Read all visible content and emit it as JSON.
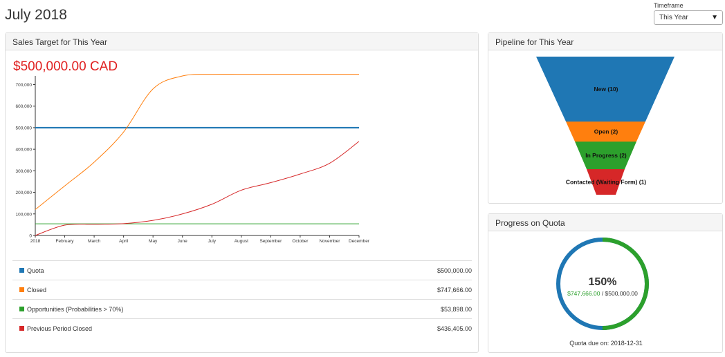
{
  "header": {
    "title": "July 2018",
    "timeframe_label": "Timeframe",
    "timeframe_value": "This Year"
  },
  "sales_panel": {
    "title": "Sales Target for This Year",
    "target_amount": "$500,000.00 CAD",
    "legend": [
      {
        "label": "Quota",
        "value": "$500,000.00",
        "color": "#1f77b4"
      },
      {
        "label": "Closed",
        "value": "$747,666.00",
        "color": "#ff7f0e"
      },
      {
        "label": "Opportunities (Probabilities > 70%)",
        "value": "$53,898.00",
        "color": "#2ca02c"
      },
      {
        "label": "Previous Period Closed",
        "value": "$436,405.00",
        "color": "#d62728"
      }
    ]
  },
  "chart_data": {
    "type": "line",
    "x": [
      "2018",
      "February",
      "March",
      "April",
      "May",
      "June",
      "July",
      "August",
      "September",
      "October",
      "November",
      "December"
    ],
    "y_ticks": [
      "0",
      "100,000",
      "200,000",
      "300,000",
      "400,000",
      "500,000",
      "600,000",
      "700,000"
    ],
    "ylim": [
      0,
      740000
    ],
    "series": [
      {
        "name": "Quota",
        "color": "#1f77b4",
        "values": [
          500000,
          500000,
          500000,
          500000,
          500000,
          500000,
          500000,
          500000,
          500000,
          500000,
          500000,
          500000
        ]
      },
      {
        "name": "Closed",
        "color": "#ff7f0e",
        "values": [
          120000,
          230000,
          340000,
          480000,
          680000,
          740000,
          747666,
          747666,
          747666,
          747666,
          747666,
          747666
        ]
      },
      {
        "name": "Opportunities (Probabilities > 70%)",
        "color": "#2ca02c",
        "values": [
          53898,
          53898,
          53898,
          53898,
          53898,
          53898,
          53898,
          53898,
          53898,
          53898,
          53898,
          53898
        ]
      },
      {
        "name": "Previous Period Closed",
        "color": "#d62728",
        "values": [
          0,
          48000,
          52000,
          55000,
          70000,
          100000,
          145000,
          210000,
          245000,
          285000,
          335000,
          436405
        ]
      }
    ]
  },
  "pipeline_panel": {
    "title": "Pipeline for This Year",
    "stages": [
      {
        "label": "New (10)",
        "color": "#1f77b4"
      },
      {
        "label": "Open (2)",
        "color": "#ff7f0e"
      },
      {
        "label": "In Progress (2)",
        "color": "#2ca02c"
      },
      {
        "label": "Contacted (Waiting Form) (1)",
        "color": "#d62728"
      }
    ]
  },
  "quota_panel": {
    "title": "Progress on Quota",
    "percent": "150%",
    "closed": "$747,666.00",
    "separator": " / ",
    "quota": "$500,000.00",
    "due": "Quota due on: 2018-12-31",
    "progress_fraction": 1.5,
    "closed_color": "#2ca02c",
    "ring_color": "#1f77b4"
  }
}
